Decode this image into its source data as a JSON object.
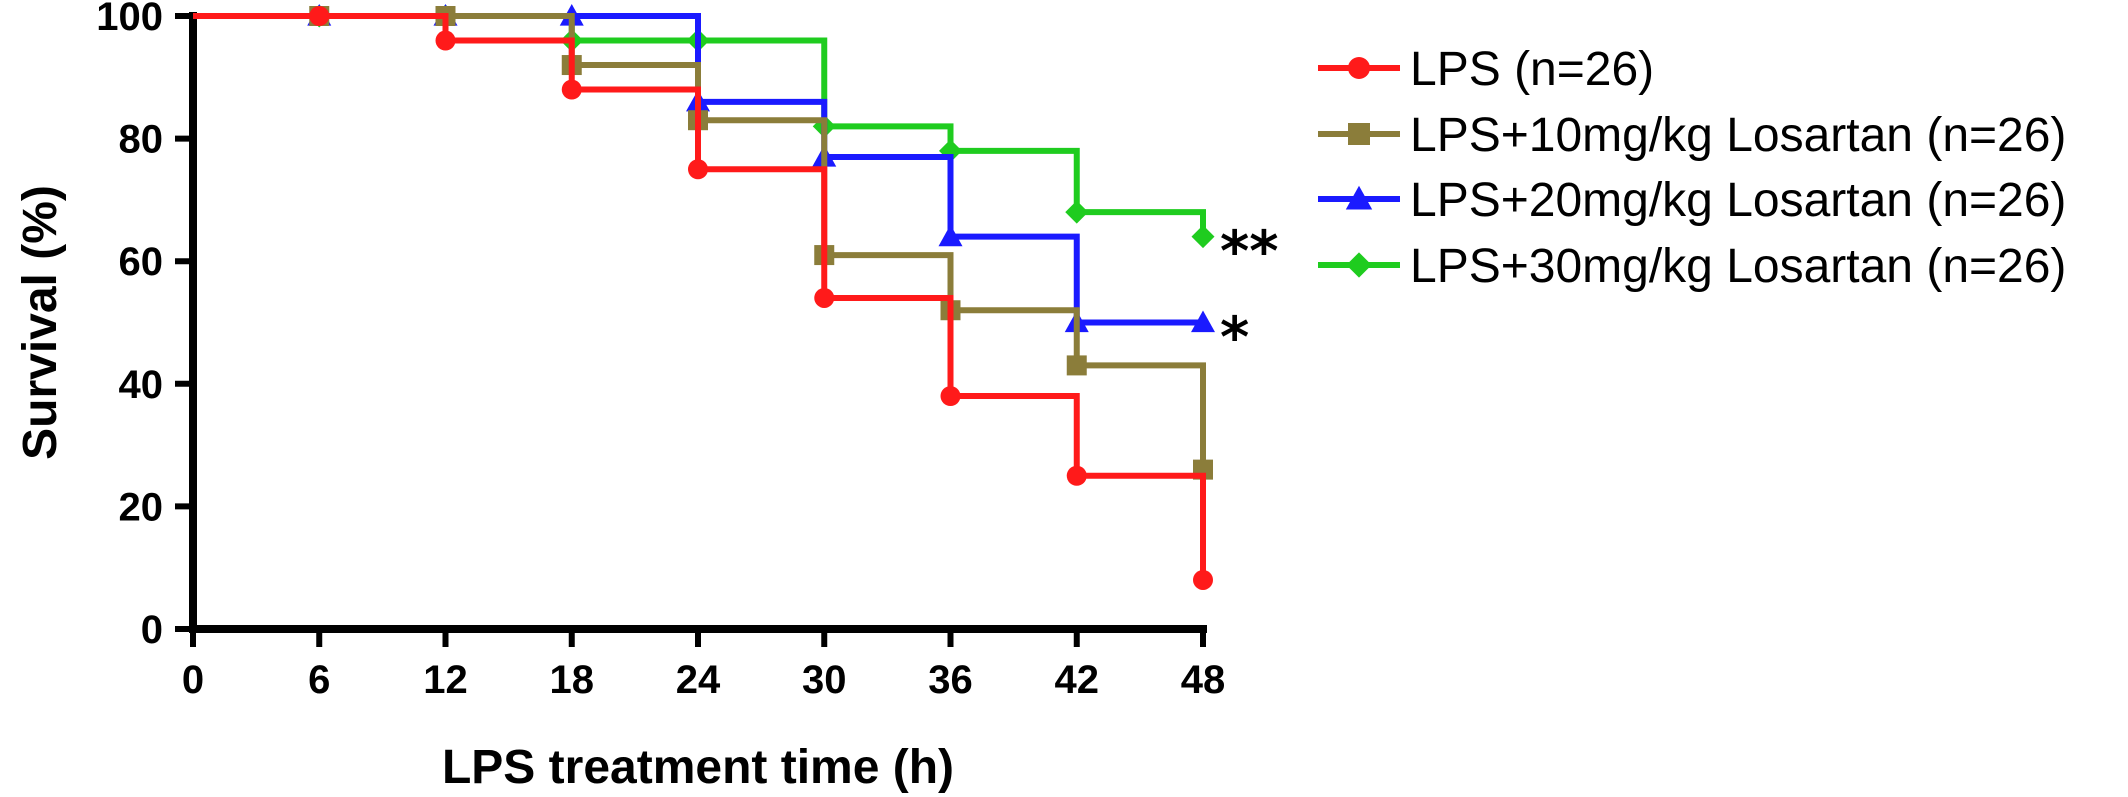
{
  "chart_data": {
    "type": "line",
    "subtype": "kaplan-meier-step",
    "xlabel": "LPS treatment time (h)",
    "ylabel": "Survival (%)",
    "xlim": [
      0,
      48
    ],
    "ylim": [
      0,
      100
    ],
    "xticks": [
      "0",
      "6",
      "12",
      "18",
      "24",
      "30",
      "36",
      "42",
      "48"
    ],
    "yticks": [
      "0",
      "20",
      "40",
      "60",
      "80",
      "100"
    ],
    "legend_position": "right",
    "grid": false,
    "series": [
      {
        "name": "LPS (n=26)",
        "color": "#ff1a1a",
        "marker": "circle",
        "x": [
          0,
          6,
          12,
          18,
          24,
          30,
          36,
          42,
          48
        ],
        "y": [
          100,
          100,
          96,
          88,
          75,
          54,
          38,
          25,
          8
        ]
      },
      {
        "name": "LPS+10mg/kg Losartan (n=26)",
        "color": "#8b7d3a",
        "marker": "square",
        "x": [
          0,
          6,
          12,
          18,
          24,
          30,
          36,
          42,
          48
        ],
        "y": [
          100,
          100,
          100,
          92,
          83,
          61,
          52,
          43,
          26
        ]
      },
      {
        "name": "LPS+20mg/kg Losartan (n=26)",
        "color": "#1a1aff",
        "marker": "triangle",
        "x": [
          0,
          6,
          12,
          18,
          24,
          30,
          36,
          42,
          48
        ],
        "y": [
          100,
          100,
          100,
          100,
          86,
          77,
          64,
          50,
          50
        ],
        "annotation": "*"
      },
      {
        "name": "LPS+30mg/kg Losartan (n=26)",
        "color": "#1fcc1f",
        "marker": "diamond",
        "x": [
          0,
          6,
          12,
          18,
          24,
          30,
          36,
          42,
          48
        ],
        "y": [
          100,
          100,
          100,
          96,
          96,
          82,
          78,
          68,
          64
        ],
        "annotation": "**"
      }
    ]
  }
}
